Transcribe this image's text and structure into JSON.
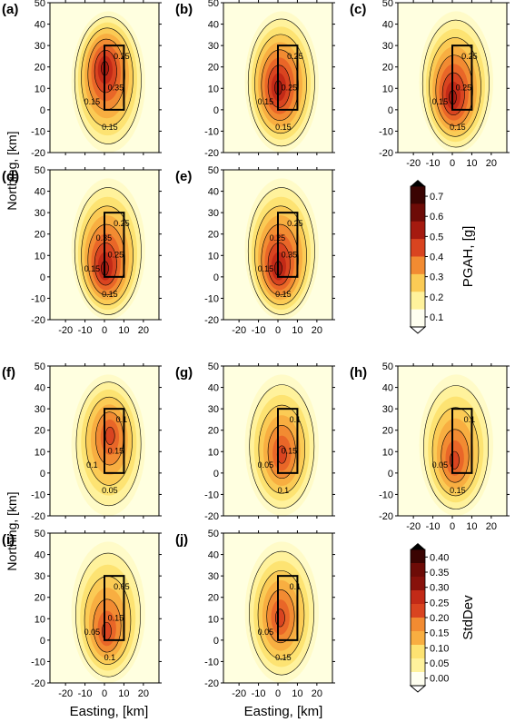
{
  "figure": {
    "x_label": "Easting, [km]",
    "y_label": "Northing, [km]"
  },
  "colors": {
    "background": "#ffffe0",
    "outline": "#000000",
    "scale": [
      "#fffff0",
      "#fffbc8",
      "#fff29c",
      "#fde372",
      "#fbcb55",
      "#f8ae41",
      "#f28b32",
      "#e96628",
      "#d94420",
      "#c22a17",
      "#a51a10",
      "#87110b",
      "#6d0b07",
      "#520704",
      "#3a0402"
    ]
  },
  "chart_data": [
    {
      "panel": "(a)",
      "group": "PGAH",
      "type": "contour",
      "x_ticks": [
        -20,
        -10,
        0,
        10,
        20
      ],
      "y_ticks": [
        -20,
        -10,
        0,
        10,
        20,
        30,
        40,
        50
      ],
      "xlim": [
        -28,
        28
      ],
      "ylim": [
        -20,
        50
      ],
      "fault_box": {
        "x": [
          0,
          10
        ],
        "y": [
          0,
          30
        ]
      },
      "contour_labels": [
        "0.15",
        "0.25",
        "0.15",
        "0.35"
      ],
      "peak": {
        "x": 0,
        "y": 20,
        "value": 0.6
      }
    },
    {
      "panel": "(b)",
      "group": "PGAH",
      "type": "contour",
      "x_ticks": [
        -20,
        -10,
        0,
        10,
        20
      ],
      "y_ticks": [
        -20,
        -10,
        0,
        10,
        20,
        30,
        40,
        50
      ],
      "xlim": [
        -28,
        28
      ],
      "ylim": [
        -20,
        50
      ],
      "fault_box": {
        "x": [
          0,
          10
        ],
        "y": [
          0,
          30
        ]
      },
      "contour_labels": [
        "0.15",
        "0.25",
        "0.15",
        "0.25"
      ],
      "peak": {
        "x": 0,
        "y": 10,
        "value": 0.55
      }
    },
    {
      "panel": "(c)",
      "group": "PGAH",
      "type": "contour",
      "x_ticks": [
        -20,
        -10,
        0,
        10,
        20
      ],
      "y_ticks": [
        -20,
        -10,
        0,
        10,
        20,
        30,
        40,
        50
      ],
      "xlim": [
        -28,
        28
      ],
      "ylim": [
        -20,
        50
      ],
      "fault_box": {
        "x": [
          0,
          10
        ],
        "y": [
          0,
          30
        ]
      },
      "contour_labels": [
        "0.15",
        "0.25",
        "0.15",
        "0.25"
      ],
      "peak": {
        "x": 0,
        "y": 5,
        "value": 0.65
      }
    },
    {
      "panel": "(d)",
      "group": "PGAH",
      "type": "contour",
      "x_ticks": [
        -20,
        -10,
        0,
        10,
        20
      ],
      "y_ticks": [
        -20,
        -10,
        0,
        10,
        20,
        30,
        40,
        50
      ],
      "xlim": [
        -28,
        28
      ],
      "ylim": [
        -20,
        50
      ],
      "fault_box": {
        "x": [
          0,
          10
        ],
        "y": [
          0,
          30
        ]
      },
      "contour_labels": [
        "0.15",
        "0.25",
        "0.15",
        "0.25",
        "0.35"
      ],
      "peak": {
        "x": 0,
        "y": 3,
        "value": 0.7
      }
    },
    {
      "panel": "(e)",
      "group": "PGAH",
      "type": "contour",
      "x_ticks": [
        -20,
        -10,
        0,
        10,
        20
      ],
      "y_ticks": [
        -20,
        -10,
        0,
        10,
        20,
        30,
        40,
        50
      ],
      "xlim": [
        -28,
        28
      ],
      "ylim": [
        -20,
        50
      ],
      "fault_box": {
        "x": [
          0,
          10
        ],
        "y": [
          0,
          30
        ]
      },
      "contour_labels": [
        "0.15",
        "0.25",
        "0.15",
        "0.35",
        "0.25"
      ],
      "peak": {
        "x": 0,
        "y": 3,
        "value": 0.7
      }
    },
    {
      "panel": "(f)",
      "group": "StdDev",
      "type": "contour",
      "x_ticks": [
        -20,
        -10,
        0,
        10,
        20
      ],
      "y_ticks": [
        -20,
        -10,
        0,
        10,
        20,
        30,
        40,
        50
      ],
      "xlim": [
        -28,
        28
      ],
      "ylim": [
        -20,
        50
      ],
      "fault_box": {
        "x": [
          0,
          10
        ],
        "y": [
          0,
          30
        ]
      },
      "contour_labels": [
        "0.1",
        "0.1",
        "0.05",
        "0.15"
      ],
      "peak": {
        "x": 3,
        "y": 18,
        "value": 0.2
      }
    },
    {
      "panel": "(g)",
      "group": "StdDev",
      "type": "contour",
      "x_ticks": [
        -20,
        -10,
        0,
        10,
        20
      ],
      "y_ticks": [
        -20,
        -10,
        0,
        10,
        20,
        30,
        40,
        50
      ],
      "xlim": [
        -28,
        28
      ],
      "ylim": [
        -20,
        50
      ],
      "fault_box": {
        "x": [
          0,
          10
        ],
        "y": [
          0,
          30
        ]
      },
      "contour_labels": [
        "0.05",
        "0.1",
        "0.1",
        "0.15"
      ],
      "peak": {
        "x": 2,
        "y": 8,
        "value": 0.25
      }
    },
    {
      "panel": "(h)",
      "group": "StdDev",
      "type": "contour",
      "x_ticks": [
        -20,
        -10,
        0,
        10,
        20
      ],
      "y_ticks": [
        -20,
        -10,
        0,
        10,
        20,
        30,
        40,
        50
      ],
      "xlim": [
        -28,
        28
      ],
      "ylim": [
        -20,
        50
      ],
      "fault_box": {
        "x": [
          0,
          10
        ],
        "y": [
          0,
          30
        ]
      },
      "contour_labels": [
        "0.05",
        "0.1",
        "0.15"
      ],
      "peak": {
        "x": 1,
        "y": 5,
        "value": 0.25
      }
    },
    {
      "panel": "(i)",
      "group": "StdDev",
      "type": "contour",
      "x_ticks": [
        -20,
        -10,
        0,
        10,
        20
      ],
      "y_ticks": [
        -20,
        -10,
        0,
        10,
        20,
        30,
        40,
        50
      ],
      "xlim": [
        -28,
        28
      ],
      "ylim": [
        -20,
        50
      ],
      "fault_box": {
        "x": [
          0,
          10
        ],
        "y": [
          0,
          30
        ]
      },
      "contour_labels": [
        "0.05",
        "0.05",
        "0.1",
        "0.15"
      ],
      "peak": {
        "x": 1,
        "y": 3,
        "value": 0.3
      }
    },
    {
      "panel": "(j)",
      "group": "StdDev",
      "type": "contour",
      "x_ticks": [
        -20,
        -10,
        0,
        10,
        20
      ],
      "y_ticks": [
        -20,
        -10,
        0,
        10,
        20,
        30,
        40,
        50
      ],
      "xlim": [
        -28,
        28
      ],
      "ylim": [
        -20,
        50
      ],
      "fault_box": {
        "x": [
          0,
          10
        ],
        "y": [
          0,
          30
        ]
      },
      "contour_labels": [
        "0.05",
        "0.1",
        "0.15"
      ],
      "peak": {
        "x": 1,
        "y": 10,
        "value": 0.3
      }
    }
  ],
  "colorbars": [
    {
      "title": "PGAH, [g]",
      "ticks": [
        "0.7",
        "0.6",
        "0.5",
        "0.4",
        "0.3",
        "0.2",
        "0.1"
      ],
      "range": [
        0.05,
        0.75
      ]
    },
    {
      "title": "StdDev",
      "ticks": [
        "0.40",
        "0.35",
        "0.30",
        "0.25",
        "0.20",
        "0.15",
        "0.10",
        "0.05",
        "0.00"
      ],
      "range": [
        0,
        0.4
      ]
    }
  ]
}
